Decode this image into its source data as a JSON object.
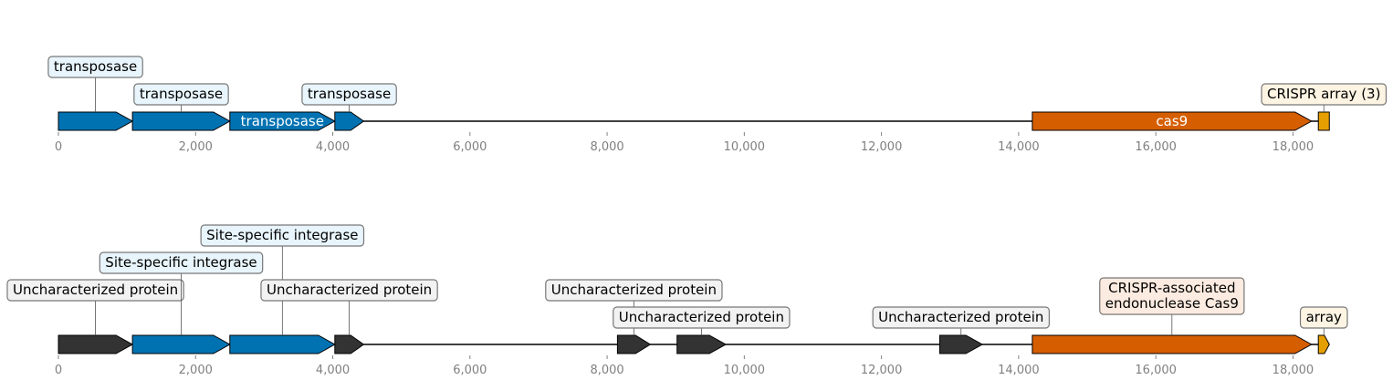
{
  "colors": {
    "transposase": "#0072b2",
    "cas9": "#d55e00",
    "crispr": "#e69f00",
    "other": "#333333",
    "box_transposase": "#e8f5fc",
    "box_other": "#f2f2f2",
    "box_cas": "#fcebe0",
    "box_crispr": "#fdf4e3"
  },
  "axis": {
    "min": 0,
    "max": 18500,
    "ticks": [
      "0",
      "2,000",
      "4,000",
      "6,000",
      "8,000",
      "10,000",
      "12,000",
      "14,000",
      "16,000",
      "18,000"
    ]
  },
  "tracks": [
    {
      "features": [
        {
          "start": 0,
          "end": 1080,
          "kind": "transposase",
          "label": "transposase",
          "inline": false,
          "level": 2
        },
        {
          "start": 1080,
          "end": 2500,
          "kind": "transposase",
          "label": "transposase",
          "inline": false,
          "level": 1
        },
        {
          "start": 2500,
          "end": 4030,
          "kind": "transposase",
          "label": "transposase",
          "inline": true,
          "level": 0
        },
        {
          "start": 4030,
          "end": 4450,
          "kind": "transposase",
          "label": "transposase",
          "inline": false,
          "level": 1
        },
        {
          "start": 14200,
          "end": 18270,
          "kind": "cas9",
          "label": "cas9",
          "inline": true,
          "level": 0
        },
        {
          "start": 18370,
          "end": 18530,
          "kind": "crispr",
          "label": "CRISPR array (3)",
          "inline": false,
          "level": 1,
          "shape": "rect"
        }
      ]
    },
    {
      "features": [
        {
          "start": 0,
          "end": 1080,
          "kind": "other",
          "label": "Uncharacterized protein",
          "inline": false,
          "level": 2
        },
        {
          "start": 1080,
          "end": 2500,
          "kind": "transposase",
          "label": "Site-specific integrase",
          "inline": false,
          "level": 3
        },
        {
          "start": 2500,
          "end": 4030,
          "kind": "transposase",
          "label": "Site-specific integrase",
          "inline": false,
          "level": 4
        },
        {
          "start": 4030,
          "end": 4450,
          "kind": "other",
          "label": "Uncharacterized protein",
          "inline": false,
          "level": 2
        },
        {
          "start": 8150,
          "end": 8630,
          "kind": "other",
          "label": "Uncharacterized protein",
          "inline": false,
          "level": 2
        },
        {
          "start": 9020,
          "end": 9730,
          "kind": "other",
          "label": "Uncharacterized protein",
          "inline": false,
          "level": 1
        },
        {
          "start": 12850,
          "end": 13470,
          "kind": "other",
          "label": "Uncharacterized protein",
          "inline": false,
          "level": 1
        },
        {
          "start": 14200,
          "end": 18270,
          "kind": "cas9",
          "label": "CRISPR-associated\nendonuclease Cas9",
          "inline": false,
          "level": 1.5
        },
        {
          "start": 18370,
          "end": 18530,
          "kind": "crispr",
          "label": "array",
          "inline": false,
          "level": 1
        }
      ]
    }
  ]
}
